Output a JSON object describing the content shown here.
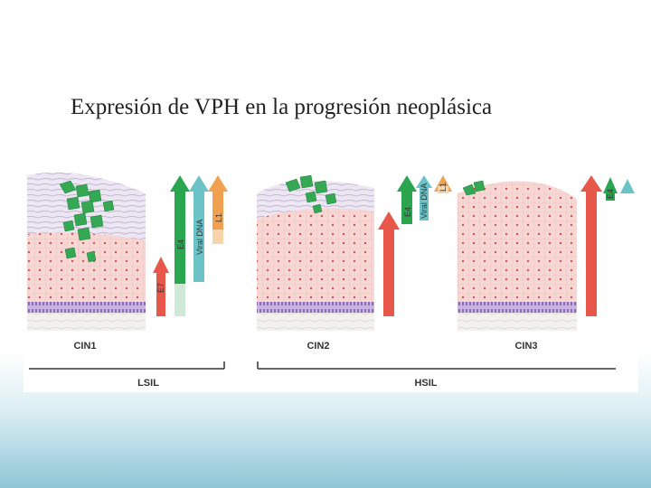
{
  "slide": {
    "title": "Expresión de VPH en la progresión neoplásica"
  },
  "stages": [
    {
      "label": "CIN1"
    },
    {
      "label": "CIN2"
    },
    {
      "label": "CIN3"
    }
  ],
  "groups": [
    {
      "label": "LSIL"
    },
    {
      "label": "HSIL"
    }
  ],
  "markers": {
    "e7": "E7",
    "e4": "E4",
    "viral_dna": "Viral DNA",
    "l1": "L1"
  },
  "colors": {
    "e7_red": "#e8584a",
    "e4_green": "#2aa651",
    "viral_dna_teal": "#6cc3c7",
    "l1_orange": "#f0a04e",
    "tissue_pink": "#f6d5d2",
    "infected_green": "#34a853",
    "basal_purple": "#b9a3d4"
  }
}
